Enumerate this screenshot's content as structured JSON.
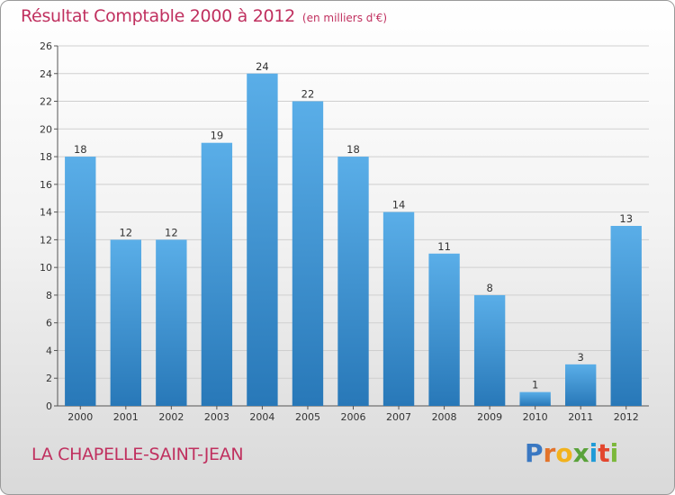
{
  "header": {
    "title": "Résultat Comptable 2000 à 2012",
    "subtitle": "(en milliers d'€)"
  },
  "footer": {
    "place": "LA CHAPELLE-SAINT-JEAN",
    "logo_letters": [
      "P",
      "r",
      "o",
      "x",
      "i",
      "t",
      "i"
    ],
    "logo_colors": [
      "#3a78c2",
      "#e3732a",
      "#f2b21c",
      "#5aa23a",
      "#1f9bd7",
      "#e3462e",
      "#7cb83b"
    ]
  },
  "chart_data": {
    "type": "bar",
    "title": "Résultat Comptable 2000 à 2012",
    "xlabel": "",
    "ylabel": "",
    "categories": [
      "2000",
      "2001",
      "2002",
      "2003",
      "2004",
      "2005",
      "2006",
      "2007",
      "2008",
      "2009",
      "2010",
      "2011",
      "2012"
    ],
    "values": [
      18,
      12,
      12,
      19,
      24,
      22,
      18,
      14,
      11,
      8,
      1,
      3,
      13
    ],
    "ylim": [
      0,
      26
    ],
    "yticks": [
      0,
      2,
      4,
      6,
      8,
      10,
      12,
      14,
      16,
      18,
      20,
      22,
      24,
      26
    ],
    "grid": true,
    "bar_color_top": "#5aaee8",
    "bar_color_bottom": "#2878b8"
  }
}
